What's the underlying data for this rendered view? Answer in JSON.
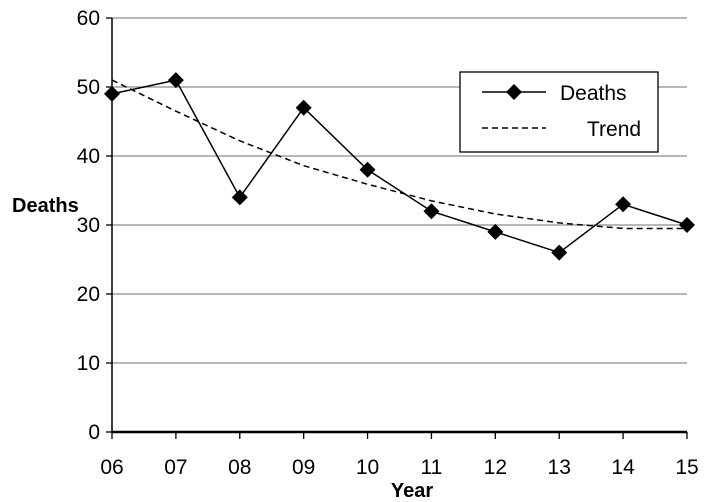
{
  "chart_data": {
    "type": "line",
    "title": "",
    "xlabel": "Year",
    "ylabel": "Deaths",
    "categories": [
      "06",
      "07",
      "08",
      "09",
      "10",
      "11",
      "12",
      "13",
      "14",
      "15"
    ],
    "ylim": [
      0,
      60
    ],
    "yticks": [
      "0",
      "10",
      "20",
      "30",
      "40",
      "50",
      "60"
    ],
    "grid": true,
    "legend_position": "top-right",
    "series": [
      {
        "name": "Deaths",
        "style": "solid-with-diamond-markers",
        "color": "#000000",
        "values": [
          49,
          51,
          34,
          47,
          38,
          32,
          29,
          26,
          33,
          30
        ]
      },
      {
        "name": "Trend",
        "style": "dashed",
        "color": "#000000",
        "values": [
          51,
          46.5,
          42.2,
          38.6,
          35.9,
          33.5,
          31.6,
          30.3,
          29.5,
          29.5
        ]
      }
    ]
  }
}
